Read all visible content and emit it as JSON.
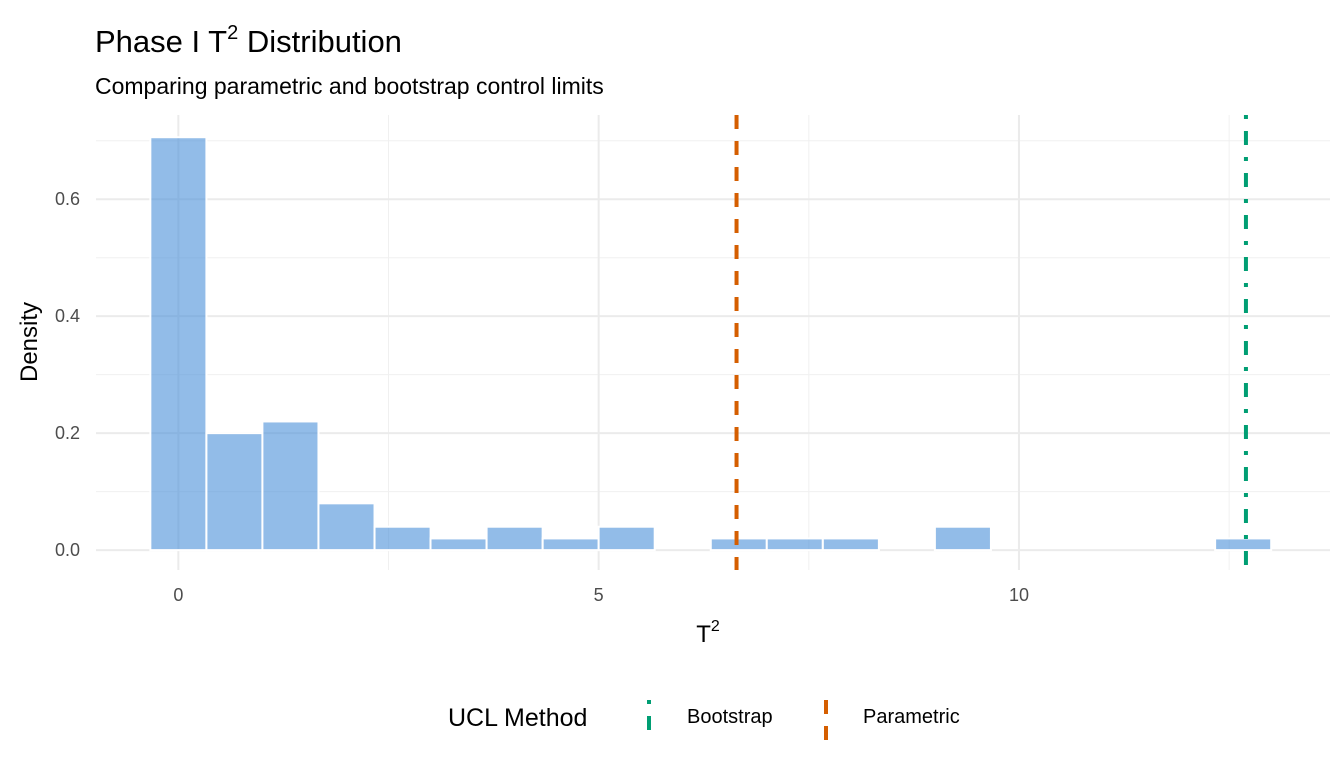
{
  "chart_data": {
    "type": "bar",
    "title": "Phase I T",
    "title_sup": "2",
    "title_rest": " Distribution",
    "subtitle": "Comparing parametric and bootstrap control limits",
    "xlabel": "T",
    "xlabel_sup": "2",
    "ylabel": "Density",
    "xlim": [
      -0.98,
      13.7
    ],
    "ylim": [
      -0.034,
      0.744
    ],
    "grid": true,
    "x_ticks": [
      0,
      5,
      10
    ],
    "x_tick_labels": [
      "0",
      "5",
      "10"
    ],
    "y_ticks": [
      0,
      0.2,
      0.4,
      0.6
    ],
    "y_tick_labels": [
      "0.0",
      "0.2",
      "0.4",
      "0.6"
    ],
    "bin_width": 0.667,
    "bin_centers": [
      0,
      0.667,
      1.333,
      2,
      2.667,
      3.333,
      4,
      4.667,
      5.333,
      6,
      6.667,
      7.333,
      8,
      8.667,
      9.333,
      10,
      10.667,
      11.333,
      12,
      12.667
    ],
    "density": [
      0.706,
      0.2,
      0.22,
      0.08,
      0.04,
      0.02,
      0.04,
      0.02,
      0.04,
      0,
      0.02,
      0.02,
      0.02,
      0,
      0.04,
      0,
      0,
      0,
      0,
      0.02
    ],
    "bar_color": "#4A90D9",
    "ucl_lines": [
      {
        "name": "Bootstrap",
        "x": 12.7,
        "color": "#009E73",
        "linetype": "dotdash"
      },
      {
        "name": "Parametric",
        "x": 6.64,
        "color": "#D55E00",
        "linetype": "dashed"
      }
    ],
    "legend": {
      "title": "UCL Method",
      "position": "bottom",
      "entries": [
        "Bootstrap",
        "Parametric"
      ]
    }
  }
}
